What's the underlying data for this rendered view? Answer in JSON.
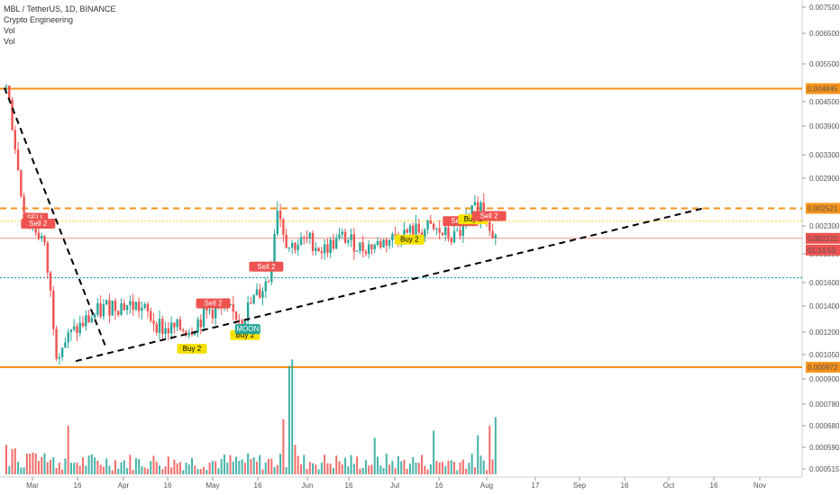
{
  "header": {
    "symbol_line": "MBL / TetherUS, 1D, BINANCE",
    "indicator": "Crypto Engineering",
    "vol1": "Vol",
    "vol2": "Vol"
  },
  "chart_data": {
    "type": "candlestick",
    "y_axis_labels": [
      "0.007500",
      "0.006500",
      "0.005500",
      "0.004500",
      "0.003900",
      "0.003300",
      "0.002900",
      "0.002300",
      "0.001900",
      "0.001600",
      "0.001400",
      "0.001200",
      "0.001050",
      "0.000900",
      "0.000780",
      "0.000680",
      "0.000590",
      "0.000515"
    ],
    "x_axis_labels": [
      "Mar",
      "16",
      "Apr",
      "16",
      "May",
      "16",
      "Jun",
      "16",
      "Jul",
      "16",
      "Aug",
      "17",
      "Sep",
      "16",
      "Oct",
      "16",
      "Nov"
    ],
    "price_tags": [
      {
        "value": "0.004845",
        "color": "#f7931a",
        "text_color": "#000000"
      },
      {
        "value": "0.002521",
        "color": "#f7931a",
        "text_color": "#000000"
      },
      {
        "value": "0.002122",
        "color": "#ef5350",
        "text_color": "#ffffff"
      },
      {
        "value": "01:14:53",
        "color": "#ef5350",
        "text_color": "#ffffff"
      },
      {
        "value": "0.000972",
        "color": "#f7931a",
        "text_color": "#000000"
      }
    ],
    "horizontal_levels": [
      {
        "value": 0.004845,
        "style": "solid",
        "color": "#f7931a"
      },
      {
        "value": 0.002521,
        "style": "dashed",
        "color": "#f7931a"
      },
      {
        "value": 0.00236,
        "style": "dotted",
        "color": "#f5d40f"
      },
      {
        "value": 0.00165,
        "style": "dotted",
        "color": "#0097a7"
      },
      {
        "value": 0.002122,
        "style": "solid-thin",
        "color": "#ef5350"
      },
      {
        "value": 0.000972,
        "style": "solid",
        "color": "#f7931a"
      }
    ],
    "signals": [
      {
        "label": "SELL",
        "kind": "sell",
        "day": 11
      },
      {
        "label": "Sell 2",
        "kind": "sell",
        "day": 12
      },
      {
        "label": "Sell 2",
        "kind": "sell",
        "day": 78
      },
      {
        "label": "Sell 2",
        "kind": "sell",
        "day": 98
      },
      {
        "label": "Buy 2",
        "kind": "buy",
        "day": 70
      },
      {
        "label": "Buy 2",
        "kind": "buy",
        "day": 90
      },
      {
        "label": "MOON",
        "kind": "moon",
        "day": 91
      },
      {
        "label": "Buy 2",
        "kind": "buy",
        "day": 152
      },
      {
        "label": "Sell 2",
        "kind": "sell",
        "day": 171
      },
      {
        "label": "Buy 2",
        "kind": "buy",
        "day": 176
      },
      {
        "label": "Sell 2",
        "kind": "sell",
        "day": 182
      }
    ],
    "colors": {
      "up": "#26a69a",
      "down": "#ef5350",
      "vol_up": "#26a69a",
      "vol_down": "#ef5350"
    }
  }
}
